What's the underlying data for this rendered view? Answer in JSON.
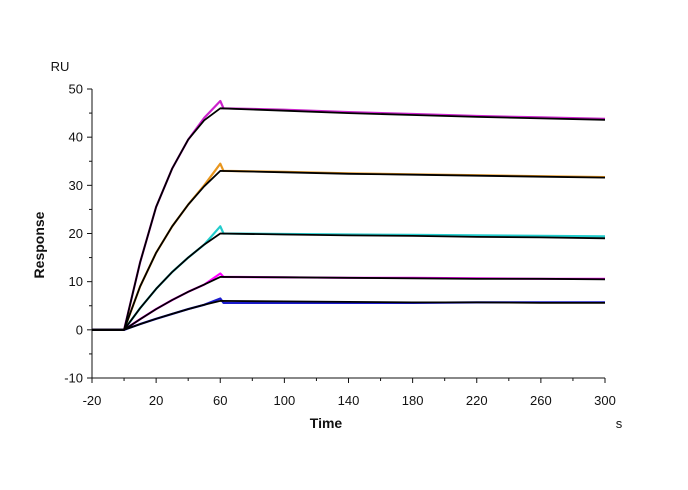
{
  "chart_data": {
    "type": "line",
    "title": "",
    "xlabel": "Time",
    "ylabel": "Response",
    "x_unit": "s",
    "y_unit": "RU",
    "xlim": [
      -20,
      300
    ],
    "ylim": [
      -10,
      50
    ],
    "x_ticks": [
      -20,
      20,
      60,
      100,
      140,
      180,
      220,
      260,
      300
    ],
    "y_ticks": [
      -10,
      0,
      10,
      20,
      30,
      40,
      50
    ],
    "grid": false,
    "legend": "none",
    "association_end": 60,
    "fit_color": "#000000",
    "series": [
      {
        "color": "#cc22cc",
        "x": [
          -20,
          0,
          10,
          20,
          30,
          40,
          50,
          60,
          62,
          100,
          140,
          180,
          220,
          260,
          300
        ],
        "values": [
          0,
          0,
          14,
          25.5,
          33.5,
          39.5,
          44,
          47.5,
          46,
          45.7,
          45.2,
          44.8,
          44.4,
          44.1,
          43.8
        ]
      },
      {
        "color": "#e8961e",
        "x": [
          -20,
          0,
          10,
          20,
          30,
          40,
          50,
          60,
          62,
          100,
          140,
          180,
          220,
          260,
          300
        ],
        "values": [
          0,
          0,
          9,
          16,
          21.5,
          26,
          30,
          34.5,
          33,
          32.8,
          32.5,
          32.3,
          32.1,
          31.9,
          31.7
        ]
      },
      {
        "color": "#22cccc",
        "x": [
          -20,
          0,
          10,
          20,
          30,
          40,
          50,
          60,
          62,
          100,
          140,
          180,
          220,
          260,
          300
        ],
        "values": [
          0,
          0,
          4.5,
          8.5,
          12,
          15,
          17.7,
          21.5,
          20,
          19.9,
          19.8,
          19.7,
          19.6,
          19.5,
          19.4
        ]
      },
      {
        "color": "#ff00ff",
        "x": [
          -20,
          0,
          10,
          20,
          30,
          40,
          50,
          60,
          62,
          100,
          140,
          180,
          220,
          260,
          300
        ],
        "values": [
          0,
          0,
          2.2,
          4.3,
          6.2,
          7.9,
          9.4,
          11.7,
          11,
          10.9,
          10.8,
          10.8,
          10.7,
          10.6,
          10.6
        ]
      },
      {
        "color": "#1a1acc",
        "x": [
          -20,
          0,
          10,
          20,
          30,
          40,
          50,
          60,
          62,
          100,
          140,
          180,
          220,
          260,
          300
        ],
        "values": [
          0,
          0,
          1.2,
          2.3,
          3.3,
          4.3,
          5.2,
          6.5,
          5.6,
          5.6,
          5.6,
          5.6,
          5.7,
          5.7,
          5.7
        ]
      }
    ],
    "fits": [
      {
        "x": [
          -20,
          0,
          10,
          20,
          30,
          40,
          50,
          60,
          100,
          140,
          180,
          220,
          260,
          300
        ],
        "values": [
          0,
          0,
          14,
          25.5,
          33.5,
          39.5,
          43.5,
          46,
          45.5,
          45,
          44.6,
          44.2,
          43.9,
          43.6
        ]
      },
      {
        "x": [
          -20,
          0,
          10,
          20,
          30,
          40,
          50,
          60,
          100,
          140,
          180,
          220,
          260,
          300
        ],
        "values": [
          0,
          0,
          9,
          16,
          21.5,
          26,
          29.8,
          33,
          32.7,
          32.4,
          32.2,
          32,
          31.8,
          31.6
        ]
      },
      {
        "x": [
          -20,
          0,
          10,
          20,
          30,
          40,
          50,
          60,
          100,
          140,
          180,
          220,
          260,
          300
        ],
        "values": [
          0,
          0,
          4.5,
          8.5,
          12,
          15,
          17.7,
          20,
          19.8,
          19.6,
          19.5,
          19.3,
          19.2,
          19
        ]
      },
      {
        "x": [
          -20,
          0,
          10,
          20,
          30,
          40,
          50,
          60,
          100,
          140,
          180,
          220,
          260,
          300
        ],
        "values": [
          0,
          0,
          2.2,
          4.3,
          6.2,
          7.9,
          9.4,
          11,
          10.9,
          10.8,
          10.7,
          10.6,
          10.6,
          10.5
        ]
      },
      {
        "x": [
          -20,
          0,
          10,
          20,
          30,
          40,
          50,
          60,
          100,
          140,
          180,
          220,
          260,
          300
        ],
        "values": [
          0,
          0,
          1.2,
          2.3,
          3.3,
          4.3,
          5.2,
          6,
          5.9,
          5.8,
          5.7,
          5.7,
          5.6,
          5.6
        ]
      }
    ]
  }
}
